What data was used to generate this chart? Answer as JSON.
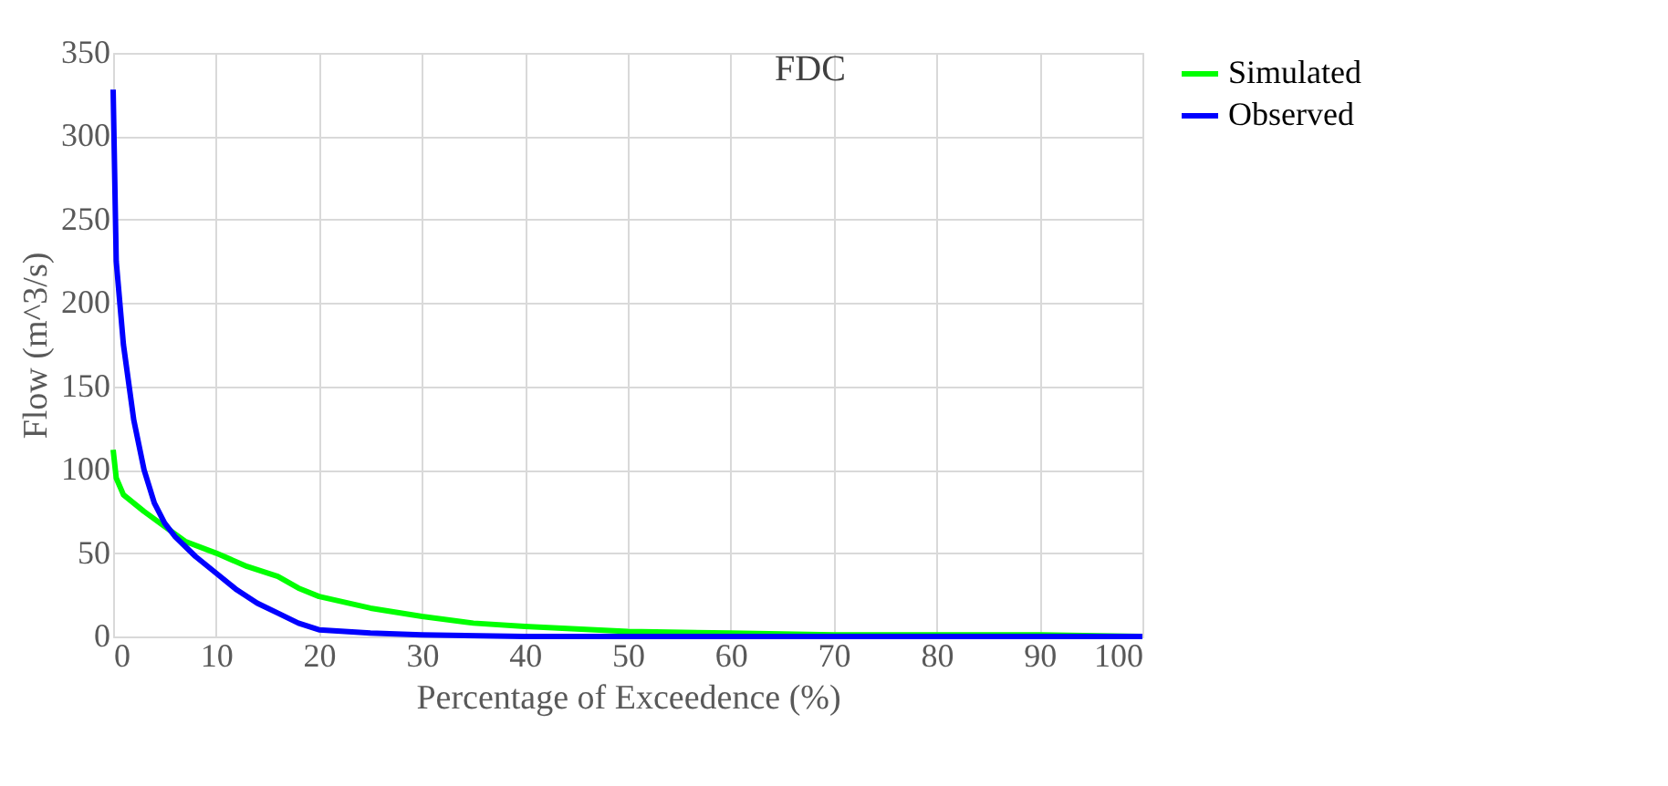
{
  "chart_data": {
    "type": "line",
    "title": "FDC",
    "xlabel": "Percentage of Exceedence (%)",
    "ylabel": "Flow (m^3/s)",
    "xlim": [
      0,
      100
    ],
    "xticks": [
      0,
      10,
      20,
      30,
      40,
      50,
      60,
      70,
      80,
      90,
      100
    ],
    "ylim": [
      0,
      350
    ],
    "yticks": [
      0,
      50,
      100,
      150,
      200,
      250,
      300,
      350
    ],
    "grid": true,
    "legend": "right",
    "marker": "none",
    "line_style": "solid",
    "series": [
      {
        "name": "Simulated",
        "color": "#00ff00",
        "x": [
          0,
          0.3,
          1,
          3,
          5,
          7,
          10,
          13,
          16,
          18,
          20,
          25,
          30,
          35,
          40,
          50,
          60,
          70,
          80,
          90,
          100
        ],
        "values": [
          112,
          95,
          85,
          75,
          66,
          57,
          50,
          42,
          36,
          29,
          24,
          17,
          12,
          8,
          6,
          3,
          2,
          1,
          1,
          1,
          0
        ]
      },
      {
        "name": "Observed",
        "color": "#0000ff",
        "x": [
          0,
          0.3,
          1,
          2,
          3,
          4,
          5,
          6,
          7,
          8,
          10,
          12,
          14,
          16,
          18,
          20,
          25,
          30,
          40,
          60,
          80,
          100
        ],
        "values": [
          328,
          225,
          175,
          130,
          100,
          80,
          68,
          60,
          54,
          48,
          38,
          28,
          20,
          14,
          8,
          4,
          2,
          1,
          0,
          0,
          0,
          0
        ]
      }
    ]
  }
}
